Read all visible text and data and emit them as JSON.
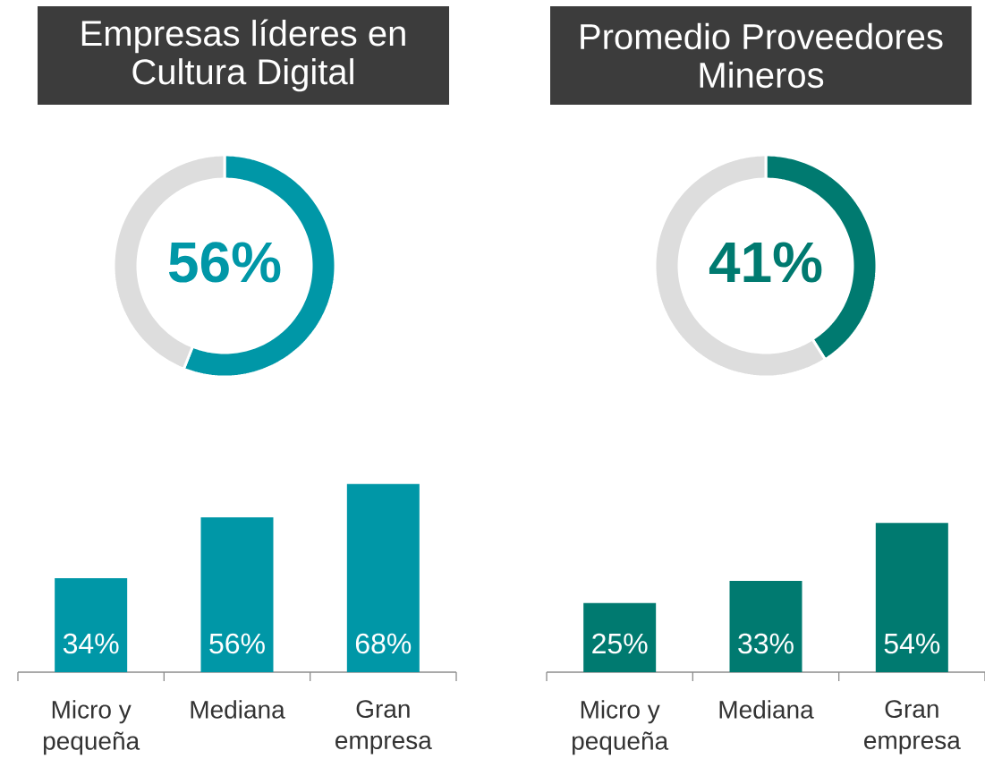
{
  "chart_data": [
    {
      "type": "donut",
      "title": "Empresas líderes en Cultura Digital",
      "categories": [
        null,
        null
      ],
      "values": [
        56,
        44
      ],
      "colors": [
        "#0097a7",
        "#dddddd"
      ],
      "value_labels": [
        "56%",
        null
      ]
    },
    {
      "type": "donut",
      "title": "Promedio Proveedores Mineros",
      "categories": [
        null,
        null
      ],
      "values": [
        41,
        59
      ],
      "colors": [
        "#007a70",
        "#dddddd"
      ],
      "value_labels": [
        "41%",
        null
      ]
    },
    {
      "type": "bar",
      "categories": [
        "Micro y pequeña",
        "Mediana",
        "Gran empresa"
      ],
      "values": [
        34,
        56,
        68
      ],
      "color": "#0097a7",
      "value_labels": [
        "34%",
        "56%",
        "68%"
      ],
      "tick_labels": "x"
    },
    {
      "type": "bar",
      "categories": [
        "Micro y pequeña",
        "Mediana",
        "Gran empresa"
      ],
      "values": [
        25,
        33,
        54
      ],
      "color": "#007a70",
      "value_labels": [
        "25%",
        "33%",
        "54%"
      ],
      "tick_labels": "x"
    }
  ]
}
